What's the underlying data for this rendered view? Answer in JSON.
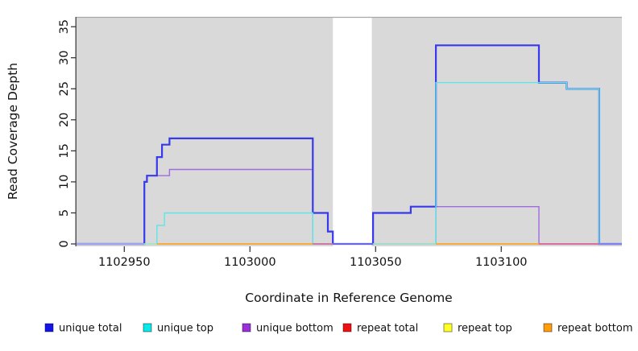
{
  "chart_data": {
    "type": "line",
    "subtype": "step-coverage",
    "title": "",
    "xlabel": "Coordinate in Reference Genome",
    "ylabel": "Read Coverage Depth",
    "xlim": [
      1102931,
      1103148
    ],
    "ylim": [
      0,
      36.6
    ],
    "grid": "off",
    "panel_background": "#d9d9d9",
    "panel_top_edge_color": "#a8a8a8",
    "axis_color": "#2b2b2b",
    "x_ticks": [
      {
        "value": 1102950,
        "label": "1102950"
      },
      {
        "value": 1103000,
        "label": "1103000"
      },
      {
        "value": 1103050,
        "label": "1103050"
      },
      {
        "value": 1103100,
        "label": "1103100"
      }
    ],
    "y_ticks": [
      {
        "value": 0,
        "label": "0"
      },
      {
        "value": 5,
        "label": "5"
      },
      {
        "value": 10,
        "label": "10"
      },
      {
        "value": 15,
        "label": "15"
      },
      {
        "value": 20,
        "label": "20"
      },
      {
        "value": 25,
        "label": "25"
      },
      {
        "value": 30,
        "label": "30"
      },
      {
        "value": 35,
        "label": "35"
      }
    ],
    "no_data_region": {
      "from": 1103033,
      "to": 1103048.5,
      "fill": "#ffffff"
    },
    "series": [
      {
        "name": "unique total",
        "color": "#3838ec",
        "width": 2.2,
        "draw": true,
        "points": [
          [
            1102931,
            0
          ],
          [
            1102958,
            10
          ],
          [
            1102959,
            11
          ],
          [
            1102963,
            14
          ],
          [
            1102965,
            16
          ],
          [
            1102968,
            17
          ],
          [
            1103025,
            5
          ],
          [
            1103031,
            2
          ],
          [
            1103033,
            0
          ],
          [
            1103049,
            5
          ],
          [
            1103064,
            6
          ],
          [
            1103074,
            32
          ],
          [
            1103115,
            26
          ],
          [
            1103126,
            25
          ],
          [
            1103139,
            0
          ],
          [
            1103148,
            0
          ]
        ]
      },
      {
        "name": "unique top",
        "color": "#5ce6e6",
        "width": 1.4,
        "draw": true,
        "points": [
          [
            1102931,
            0
          ],
          [
            1102963,
            3
          ],
          [
            1102966,
            5
          ],
          [
            1103025,
            0
          ],
          [
            1103074,
            26
          ],
          [
            1103126,
            25
          ],
          [
            1103139,
            0
          ],
          [
            1103148,
            0
          ]
        ]
      },
      {
        "name": "unique bottom",
        "color": "#a06ae0",
        "width": 1.4,
        "draw": true,
        "points": [
          [
            1102931,
            0
          ],
          [
            1102958,
            10
          ],
          [
            1102959,
            11
          ],
          [
            1102968,
            12
          ],
          [
            1103025,
            0
          ],
          [
            1103074,
            6
          ],
          [
            1103115,
            0
          ],
          [
            1103148,
            0
          ]
        ]
      },
      {
        "name": "repeat total",
        "color": "#ee1111",
        "width": 1.4,
        "draw": false,
        "points": [
          [
            1102931,
            0
          ],
          [
            1103148,
            0
          ]
        ]
      },
      {
        "name": "repeat top",
        "color": "#ffff24",
        "width": 1.4,
        "draw": false,
        "points": [
          [
            1102931,
            0
          ],
          [
            1103148,
            0
          ]
        ]
      },
      {
        "name": "repeat bottom",
        "color": "#ff9d0a",
        "width": 1.4,
        "draw": false,
        "points": [
          [
            1102931,
            0
          ],
          [
            1103148,
            0
          ]
        ]
      }
    ],
    "draw_order": [
      "unique bottom",
      "unique total",
      "unique top"
    ],
    "baseline_segments": [
      {
        "from": 1102931,
        "to": 1102958,
        "color": "#b7aaf5"
      },
      {
        "from": 1102958,
        "to": 1102963,
        "color": "#a9e5c1"
      },
      {
        "from": 1102963,
        "to": 1103025,
        "color": "#ff9d0a"
      },
      {
        "from": 1103025,
        "to": 1103033,
        "color": "#e0618d"
      },
      {
        "from": 1103033,
        "to": 1103049,
        "color": "#6f5ae8"
      },
      {
        "from": 1103049,
        "to": 1103074,
        "color": "#a9e5c1"
      },
      {
        "from": 1103074,
        "to": 1103115,
        "color": "#ff9d0a"
      },
      {
        "from": 1103115,
        "to": 1103139,
        "color": "#e0618d"
      },
      {
        "from": 1103139,
        "to": 1103148,
        "color": "#8d7cf2"
      }
    ]
  },
  "legend": {
    "items": [
      {
        "label": "unique total",
        "color": "#1414e8"
      },
      {
        "label": "unique top",
        "color": "#0ce8e8"
      },
      {
        "label": "unique bottom",
        "color": "#9b30d8"
      },
      {
        "label": "repeat total",
        "color": "#ee1111"
      },
      {
        "label": "repeat top",
        "color": "#ffff24"
      },
      {
        "label": "repeat bottom",
        "color": "#ff9d0a"
      }
    ]
  }
}
